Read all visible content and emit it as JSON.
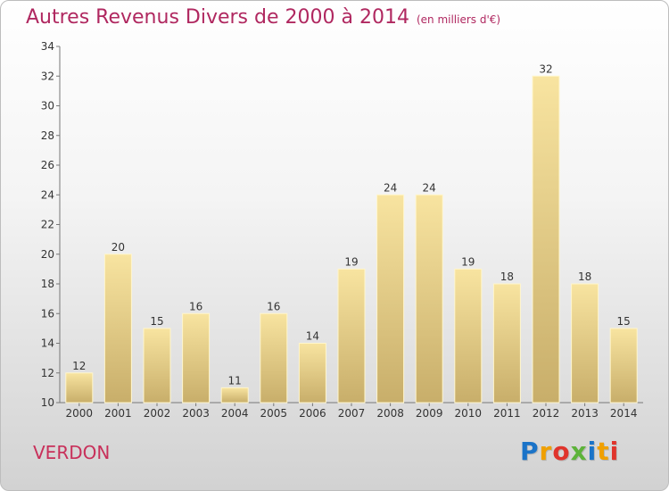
{
  "title": "Autres Revenus Divers de 2000 à 2014",
  "subtitle": "(en milliers d'€)",
  "town": "VERDON",
  "logo": {
    "text": "Proxiti",
    "letters": [
      "P",
      "r",
      "o",
      "x",
      "i",
      "t",
      "i"
    ],
    "colors": [
      "#1a73c8",
      "#f0a000",
      "#e0342c",
      "#5db33a",
      "#1a73c8",
      "#f0a000",
      "#e0342c"
    ]
  },
  "colors": {
    "title": "#b02860",
    "bar_light": "#f8e4a0",
    "bar_dark": "#c8ae6a",
    "bar_stroke": "#fff6cc"
  },
  "chart_data": {
    "type": "bar",
    "title": "Autres Revenus Divers de 2000 à 2014",
    "subtitle": "(en milliers d'€)",
    "categories": [
      "2000",
      "2001",
      "2002",
      "2003",
      "2004",
      "2005",
      "2006",
      "2007",
      "2008",
      "2009",
      "2010",
      "2011",
      "2012",
      "2013",
      "2014"
    ],
    "values": [
      12,
      20,
      15,
      16,
      11,
      16,
      14,
      19,
      24,
      24,
      19,
      18,
      32,
      18,
      15
    ],
    "ylim": [
      10,
      34
    ],
    "yticks": [
      10,
      12,
      14,
      16,
      18,
      20,
      22,
      24,
      26,
      28,
      30,
      32,
      34
    ],
    "grid": false,
    "data_labels": true
  }
}
